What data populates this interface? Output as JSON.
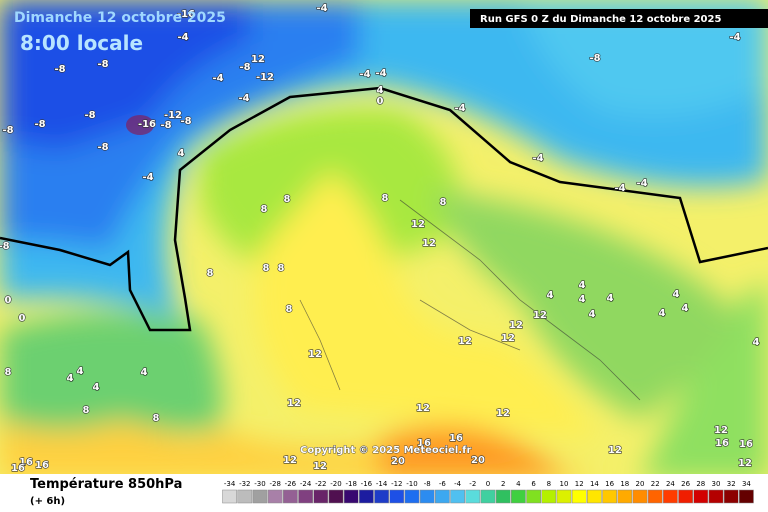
{
  "header": {
    "date": "Dimanche 12 octobre 2025",
    "time": "8:00 locale",
    "run": "Run GFS 0 Z du Dimanche 12 octobre 2025"
  },
  "map": {
    "labels": [
      -16,
      -4,
      -4,
      -8,
      -8,
      12,
      -8,
      -12,
      -4,
      -4,
      -4,
      -4,
      4,
      0,
      -12,
      -16,
      -8,
      -8,
      -8,
      -8,
      -8,
      -8,
      -4,
      4,
      -4,
      -4,
      -4,
      -4,
      -8,
      -4,
      8,
      8,
      8,
      8,
      12,
      12,
      8,
      8,
      8,
      8,
      12,
      12,
      4,
      4,
      4,
      4,
      4,
      4,
      4,
      4,
      4,
      12,
      12,
      12,
      12,
      4,
      4,
      4,
      4,
      8,
      8,
      12,
      12,
      12,
      12,
      16,
      16,
      12,
      16,
      16,
      20,
      20,
      12,
      12,
      8,
      16,
      16,
      16,
      0,
      0,
      -8
    ]
  },
  "footer": {
    "title": "Température 850hPa",
    "step": "(+ 6h)",
    "copyright": "Copyright © 2025 Meteociel.fr"
  },
  "colorbar": {
    "ticks": [
      -34,
      -32,
      -30,
      -28,
      -26,
      -24,
      -22,
      -20,
      -18,
      -16,
      -14,
      -12,
      -10,
      -8,
      -6,
      -4,
      -2,
      0,
      2,
      4,
      6,
      8,
      10,
      12,
      14,
      16,
      18,
      20,
      22,
      24,
      26,
      28,
      30,
      32,
      34
    ],
    "colors": [
      "#d8d8d8",
      "#bcbcbc",
      "#a0a0a0",
      "#a880a8",
      "#946094",
      "#804080",
      "#682468",
      "#501050",
      "#380870",
      "#1c1ca0",
      "#1e3cc8",
      "#1e50e6",
      "#1e6ef0",
      "#2c8cf0",
      "#3ca8f0",
      "#50c0f0",
      "#5adcdc",
      "#40d0a0",
      "#30c060",
      "#40d040",
      "#80e020",
      "#b4f000",
      "#dcf000",
      "#ffff00",
      "#ffe600",
      "#ffc800",
      "#ffaa00",
      "#ff8c00",
      "#ff6400",
      "#ff3c00",
      "#f01e00",
      "#d20000",
      "#b40000",
      "#8c0000",
      "#640000"
    ]
  }
}
